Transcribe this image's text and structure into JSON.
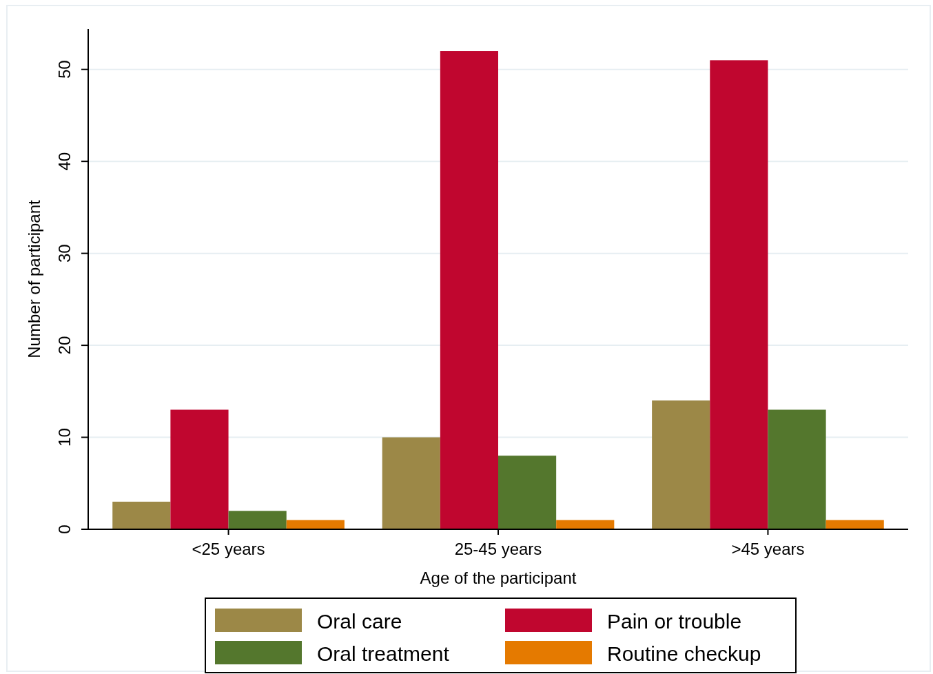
{
  "chart_data": {
    "type": "bar",
    "xlabel": "Age of the participant",
    "ylabel": "Number of participant",
    "categories": [
      "<25 years",
      "25-45 years",
      ">45 years"
    ],
    "series": [
      {
        "name": "Oral care",
        "color": "#9c8847",
        "values": [
          3,
          10,
          14
        ]
      },
      {
        "name": "Pain or trouble",
        "color": "#c0062f",
        "values": [
          13,
          52,
          51
        ]
      },
      {
        "name": "Oral treatment",
        "color": "#54772d",
        "values": [
          2,
          8,
          13
        ]
      },
      {
        "name": "Routine checkup",
        "color": "#e57a00",
        "values": [
          1,
          1,
          1
        ]
      }
    ],
    "ylim": [
      0,
      54.4
    ],
    "yticks": [
      0,
      10,
      20,
      30,
      40,
      50
    ],
    "grid": "y",
    "legend": "bottom"
  }
}
